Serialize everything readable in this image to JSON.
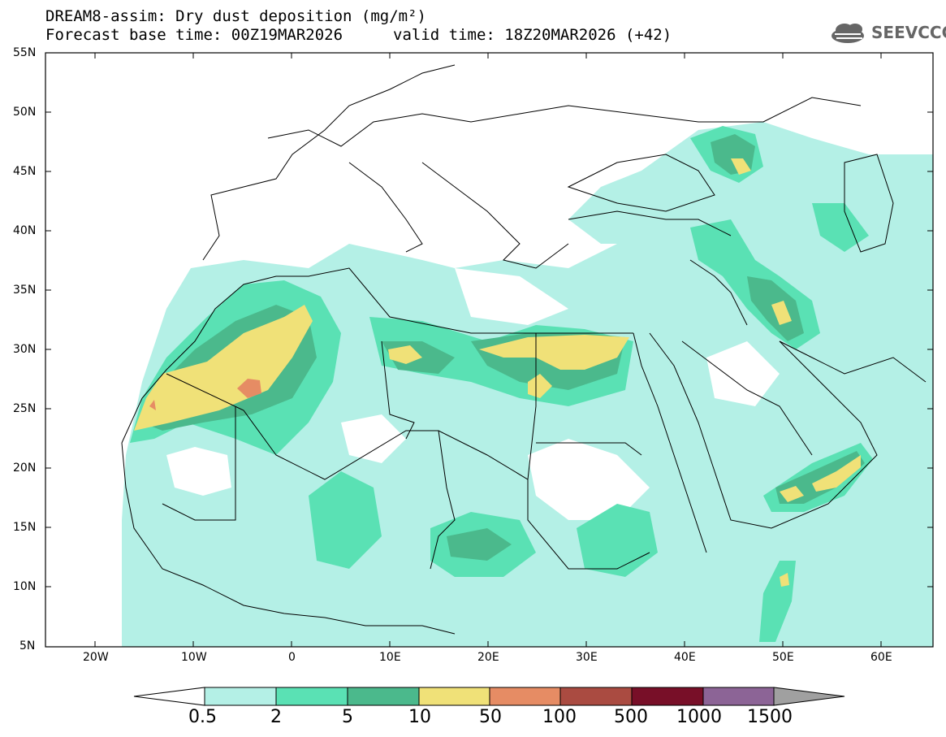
{
  "header": {
    "title_line1": "DREAM8-assim: Dry dust deposition (mg/m²)",
    "title_line2": "Forecast base time: 00Z19MAR2026",
    "valid_time": "valid time: 18Z20MAR2026 (+42)",
    "logo_text": "SEEVCCC"
  },
  "map": {
    "lon_labels": [
      "20W",
      "10W",
      "0",
      "10E",
      "20E",
      "30E",
      "40E",
      "50E",
      "60E"
    ],
    "lat_labels": [
      "55N",
      "50N",
      "45N",
      "40N",
      "35N",
      "30N",
      "25N",
      "20N",
      "15N",
      "10N",
      "5N"
    ],
    "lon_range": [
      -25,
      65
    ],
    "lat_range": [
      5,
      55
    ]
  },
  "colorbar": {
    "labels": [
      "0.5",
      "2",
      "5",
      "10",
      "50",
      "100",
      "500",
      "1000",
      "1500"
    ],
    "colors": [
      "#b4f0e6",
      "#5ae1b4",
      "#4bb98c",
      "#f0e178",
      "#e68c64",
      "#aa4b41",
      "#780f28",
      "#8c6496"
    ],
    "under_color": "#ffffff",
    "over_color": "#a0a0a0"
  },
  "legend_colors": {
    "light": "#b4f0e6",
    "mid": "#5ae1b4",
    "dark": "#4bb98c",
    "yellow": "#f0e178",
    "orange": "#e68c64"
  }
}
